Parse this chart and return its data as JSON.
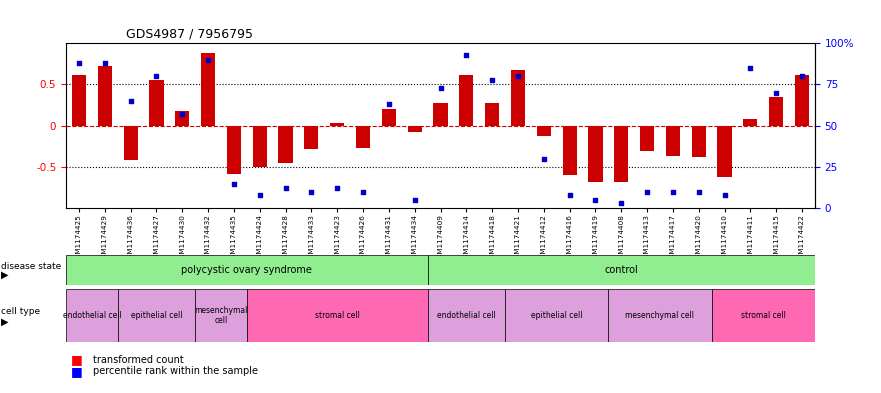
{
  "title": "GDS4987 / 7956795",
  "samples": [
    "GSM1174425",
    "GSM1174429",
    "GSM1174436",
    "GSM1174427",
    "GSM1174430",
    "GSM1174432",
    "GSM1174435",
    "GSM1174424",
    "GSM1174428",
    "GSM1174433",
    "GSM1174423",
    "GSM1174426",
    "GSM1174431",
    "GSM1174434",
    "GSM1174409",
    "GSM1174414",
    "GSM1174418",
    "GSM1174421",
    "GSM1174412",
    "GSM1174416",
    "GSM1174419",
    "GSM1174408",
    "GSM1174413",
    "GSM1174417",
    "GSM1174420",
    "GSM1174410",
    "GSM1174411",
    "GSM1174415",
    "GSM1174422"
  ],
  "bar_values": [
    0.62,
    0.72,
    -0.42,
    0.55,
    0.18,
    0.88,
    -0.58,
    -0.5,
    -0.45,
    -0.28,
    0.03,
    -0.27,
    0.2,
    -0.08,
    0.27,
    0.62,
    0.28,
    0.68,
    -0.12,
    -0.6,
    -0.68,
    -0.68,
    -0.3,
    -0.37,
    -0.38,
    -0.62,
    0.08,
    0.35,
    0.62
  ],
  "scatter_values": [
    88,
    88,
    65,
    80,
    57,
    90,
    15,
    8,
    12,
    10,
    12,
    10,
    63,
    5,
    73,
    93,
    78,
    80,
    30,
    8,
    5,
    3,
    10,
    10,
    10,
    8,
    85,
    70,
    80
  ],
  "bar_color": "#CC0000",
  "scatter_color": "#0000CC",
  "zero_line_color": "#CC0000",
  "dotted_line_color": "#000000",
  "disease_state_groups": [
    {
      "label": "polycystic ovary syndrome",
      "start": 0,
      "end": 14,
      "color": "#90EE90"
    },
    {
      "label": "control",
      "start": 14,
      "end": 29,
      "color": "#90EE90"
    }
  ],
  "cell_type_groups_pcos": [
    {
      "label": "endothelial cell",
      "start": 0,
      "end": 2,
      "color": "#DDA0DD"
    },
    {
      "label": "epithelial cell",
      "start": 2,
      "end": 5,
      "color": "#DDA0DD"
    },
    {
      "label": "mesenchymal\ncell",
      "start": 5,
      "end": 7,
      "color": "#DDA0DD"
    },
    {
      "label": "stromal cell",
      "start": 7,
      "end": 14,
      "color": "#FF69B4"
    }
  ],
  "cell_type_groups_ctrl": [
    {
      "label": "endothelial cell",
      "start": 14,
      "end": 17,
      "color": "#DDA0DD"
    },
    {
      "label": "epithelial cell",
      "start": 17,
      "end": 21,
      "color": "#DDA0DD"
    },
    {
      "label": "mesenchymal cell",
      "start": 21,
      "end": 25,
      "color": "#DDA0DD"
    },
    {
      "label": "stromal cell",
      "start": 25,
      "end": 29,
      "color": "#FF69B4"
    }
  ],
  "ylim_left": [
    -1,
    1
  ],
  "ylim_right": [
    0,
    100
  ],
  "left_yticks": [
    -0.5,
    0,
    0.5
  ],
  "left_yticklabels": [
    "-0.5",
    "0",
    "0.5"
  ],
  "right_yticks": [
    0,
    25,
    50,
    75,
    100
  ],
  "right_yticklabels": [
    "0",
    "25",
    "50",
    "75",
    "100%"
  ]
}
